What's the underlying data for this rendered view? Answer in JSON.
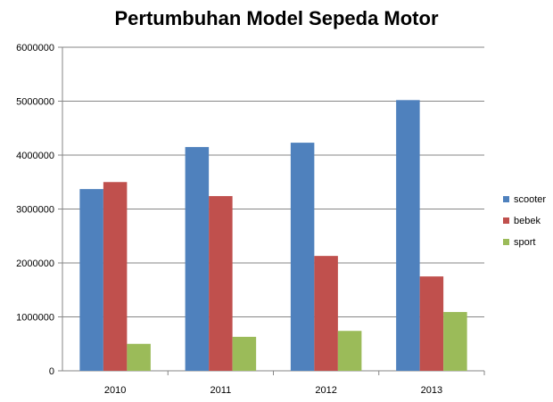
{
  "chart_data": {
    "type": "bar",
    "title": "Pertumbuhan Model Sepeda Motor",
    "xlabel": "",
    "ylabel": "",
    "categories": [
      "2010",
      "2011",
      "2012",
      "2013"
    ],
    "series": [
      {
        "name": "scooter",
        "color": "#4F81BD",
        "values": [
          3370000,
          4150000,
          4230000,
          5020000
        ]
      },
      {
        "name": "bebek",
        "color": "#C0504D",
        "values": [
          3500000,
          3240000,
          2130000,
          1750000
        ]
      },
      {
        "name": "sport",
        "color": "#9BBB59",
        "values": [
          500000,
          630000,
          740000,
          1090000
        ]
      }
    ],
    "ylim": [
      0,
      6000000
    ],
    "yticks": [
      "0",
      "1000000",
      "2000000",
      "3000000",
      "4000000",
      "5000000",
      "6000000"
    ],
    "grid": true,
    "legend": "right"
  }
}
